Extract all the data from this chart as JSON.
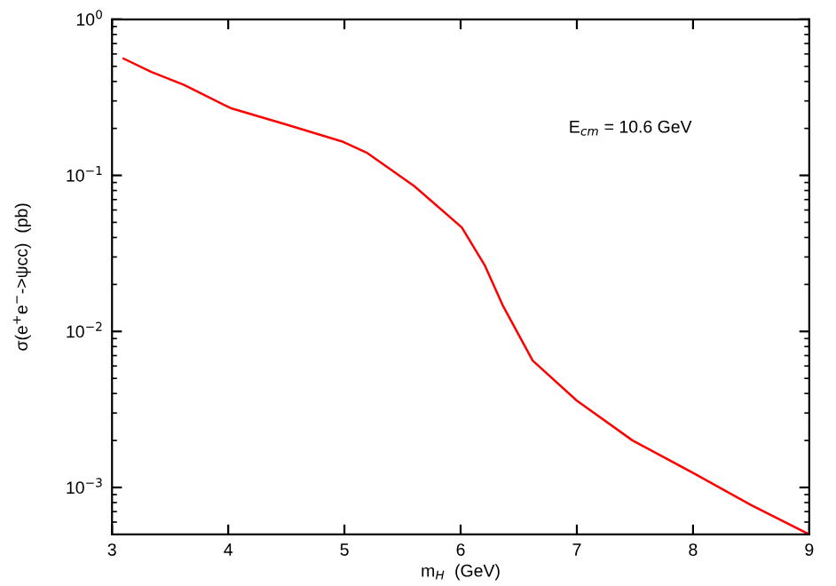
{
  "chart_data": {
    "type": "line",
    "xlabel": "m$_{H}$  (GeV)",
    "ylabel": "σ(e$^{+}$e$^{−}$->ψcc)  (pb)",
    "annotations": [
      "E$_{cm}$ = 10.6 GeV"
    ],
    "log": "y",
    "xlim": [
      3,
      9
    ],
    "ylim": [
      0.0005,
      1
    ],
    "xticks": [
      3,
      4,
      5,
      6,
      7,
      8,
      9
    ],
    "yticks": [
      {
        "value": 0.001,
        "label": "10$^{−3}$"
      },
      {
        "value": 0.01,
        "label": "10$^{−2}$"
      },
      {
        "value": 0.1,
        "label": "10$^{−1}$"
      },
      {
        "value": 1,
        "label": "10$^{0}$"
      }
    ],
    "grid": false,
    "marker": "none",
    "line_style": "solid",
    "series": [
      {
        "color": "#ff0000",
        "x": [
          3.1,
          3.34,
          3.62,
          4.02,
          4.48,
          4.99,
          5.19,
          5.6,
          6.01,
          6.21,
          6.36,
          6.62,
          7.0,
          7.48,
          8.0,
          8.5,
          9.0
        ],
        "values": [
          0.56,
          0.46,
          0.38,
          0.27,
          0.214,
          0.164,
          0.14,
          0.0855,
          0.0464,
          0.0263,
          0.0148,
          0.0065,
          0.0036,
          0.002,
          0.00124,
          0.00077,
          0.0005
        ]
      }
    ]
  }
}
